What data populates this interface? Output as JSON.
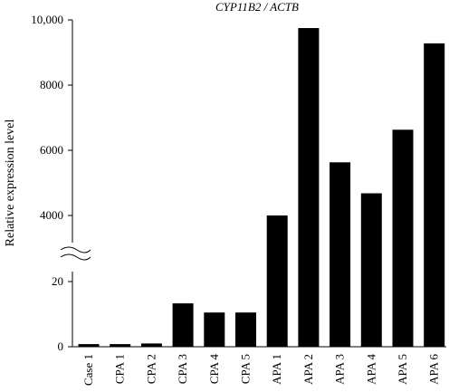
{
  "chart_data": {
    "type": "bar",
    "title": "CYP11B2 / ACTB",
    "xlabel": "",
    "ylabel": "Relative expression level",
    "axis_break": true,
    "y_segments": [
      {
        "range": [
          0,
          30
        ],
        "ticks": [
          0,
          20
        ],
        "tick_labels": [
          "0",
          "20"
        ]
      },
      {
        "range": [
          3000,
          10000
        ],
        "ticks": [
          4000,
          6000,
          8000,
          10000
        ],
        "tick_labels": [
          "4000",
          "6000",
          "8000",
          "10,000"
        ]
      }
    ],
    "categories": [
      "Case 1",
      "CPA 1",
      "CPA 2",
      "CPA 3",
      "CPA 4",
      "CPA 5",
      "APA 1",
      "APA 2",
      "APA 3",
      "APA 4",
      "APA 5",
      "APA 6"
    ],
    "values": [
      0.8,
      0.8,
      1.0,
      13.3,
      10.5,
      10.5,
      4000,
      9750,
      5630,
      4680,
      6630,
      9280
    ],
    "bar_color": "#000000"
  }
}
